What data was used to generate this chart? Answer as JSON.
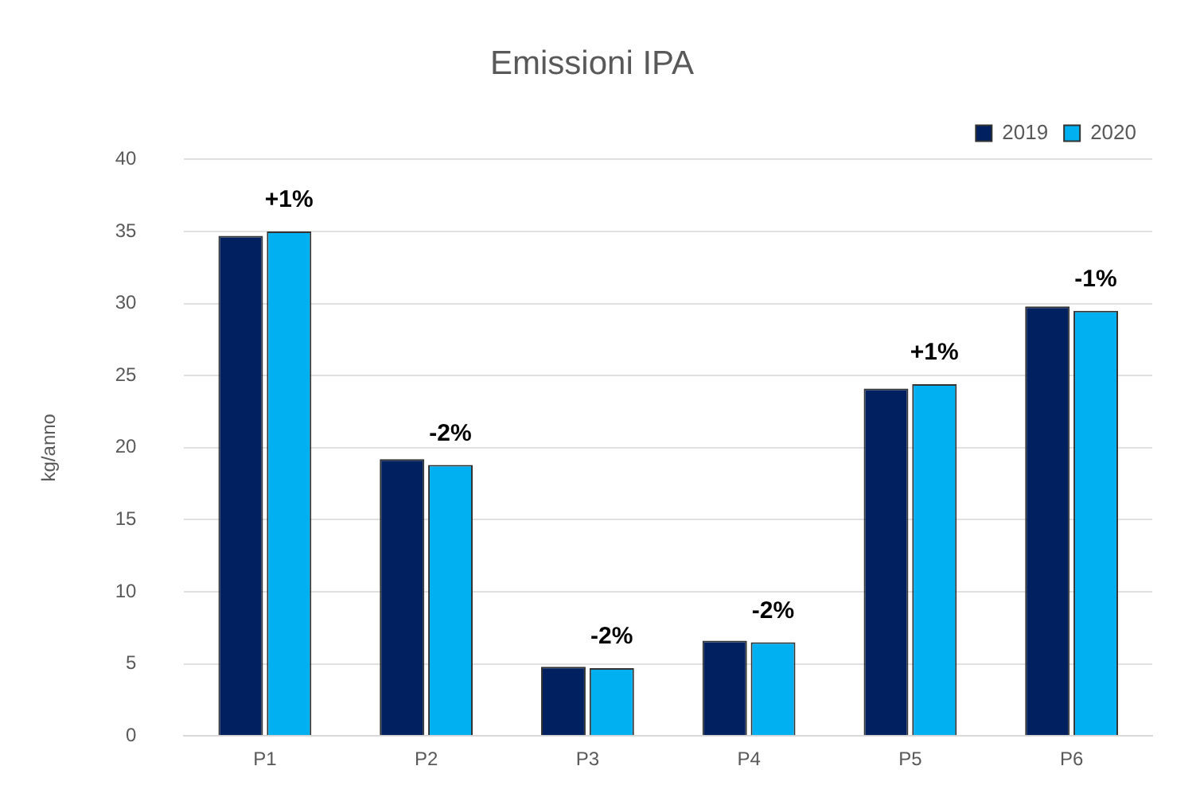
{
  "chart_data": {
    "type": "bar",
    "title": "Emissioni IPA",
    "ylabel": "kg/anno",
    "categories": [
      "P1",
      "P2",
      "P3",
      "P4",
      "P5",
      "P6"
    ],
    "series": [
      {
        "name": "2019",
        "color": "#002060",
        "values": [
          34.7,
          19.2,
          4.8,
          6.6,
          24.1,
          29.8
        ]
      },
      {
        "name": "2020",
        "color": "#00b0f0",
        "values": [
          35.0,
          18.8,
          4.7,
          6.5,
          24.4,
          29.5
        ]
      }
    ],
    "ylim": [
      0,
      40
    ],
    "yticks": [
      0,
      5,
      10,
      15,
      20,
      25,
      30,
      35,
      40
    ],
    "grid": "y",
    "legend": "top right",
    "annotations": [
      {
        "text": "+1%",
        "x": "P1",
        "y": 35.0
      },
      {
        "text": "-2%",
        "x": "P2",
        "y": 18.8
      },
      {
        "text": "-2%",
        "x": "P3",
        "y": 4.7
      },
      {
        "text": "-2%",
        "x": "P4",
        "y": 6.5
      },
      {
        "text": "+1%",
        "x": "P5",
        "y": 24.4
      },
      {
        "text": "-1%",
        "x": "P6",
        "y": 29.5
      }
    ]
  }
}
